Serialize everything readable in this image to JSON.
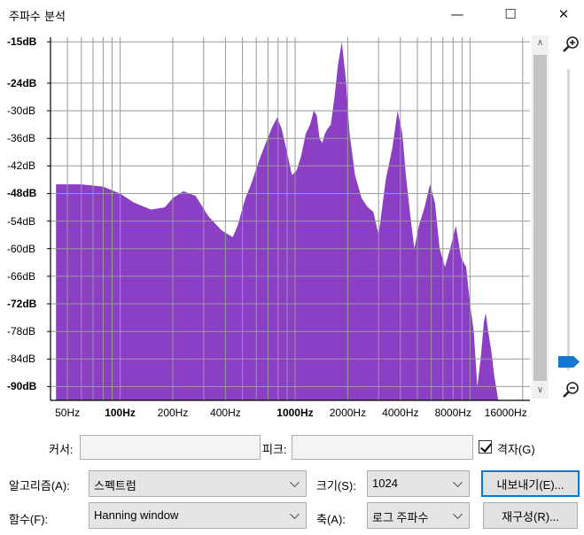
{
  "window": {
    "title": "주파수 분석",
    "minimize_glyph": "—",
    "maximize_glyph": "☐",
    "close_glyph": "✕"
  },
  "chart_data": {
    "type": "area",
    "color": "#8a3fc5",
    "grid": true,
    "xscale": "log",
    "xlim": [
      40,
      22000
    ],
    "ylim": [
      -93,
      -14
    ],
    "y_ticks": [
      {
        "value": -15,
        "label": "-15dB",
        "bold": true
      },
      {
        "value": -24,
        "label": "-24dB",
        "bold": true
      },
      {
        "value": -30,
        "label": "-30dB",
        "bold": false
      },
      {
        "value": -36,
        "label": "-36dB",
        "bold": false
      },
      {
        "value": -42,
        "label": "-42dB",
        "bold": false
      },
      {
        "value": -48,
        "label": "-48dB",
        "bold": true
      },
      {
        "value": -54,
        "label": "-54dB",
        "bold": false
      },
      {
        "value": -60,
        "label": "-60dB",
        "bold": false
      },
      {
        "value": -66,
        "label": "-66dB",
        "bold": false
      },
      {
        "value": -72,
        "label": "-72dB",
        "bold": true
      },
      {
        "value": -78,
        "label": "-78dB",
        "bold": false
      },
      {
        "value": -84,
        "label": "-84dB",
        "bold": false
      },
      {
        "value": -90,
        "label": "-90dB",
        "bold": true
      }
    ],
    "x_ticks": [
      {
        "value": 50,
        "label": "50Hz",
        "bold": false
      },
      {
        "value": 100,
        "label": "100Hz",
        "bold": true
      },
      {
        "value": 200,
        "label": "200Hz",
        "bold": false
      },
      {
        "value": 400,
        "label": "400Hz",
        "bold": false
      },
      {
        "value": 1000,
        "label": "1000Hz",
        "bold": true
      },
      {
        "value": 2000,
        "label": "2000Hz",
        "bold": false
      },
      {
        "value": 4000,
        "label": "4000Hz",
        "bold": false
      },
      {
        "value": 8000,
        "label": "8000Hz",
        "bold": false
      },
      {
        "value": 16000,
        "label": "16000Hz",
        "bold": false
      }
    ],
    "spectrum": {
      "x": [
        43,
        60,
        80,
        100,
        120,
        150,
        180,
        200,
        230,
        270,
        320,
        380,
        440,
        470,
        520,
        560,
        620,
        680,
        740,
        790,
        840,
        900,
        960,
        1020,
        1080,
        1150,
        1220,
        1280,
        1330,
        1380,
        1430,
        1480,
        1530,
        1600,
        1680,
        1760,
        1850,
        1950,
        2050,
        2200,
        2400,
        2600,
        2800,
        3000,
        3300,
        3600,
        3850,
        4100,
        4300,
        4500,
        4800,
        5100,
        5500,
        5900,
        6300,
        6700,
        7200,
        7700,
        8300,
        8900,
        9500,
        10000,
        10500,
        11000,
        11500,
        12000,
        12300,
        12700,
        13200,
        13800,
        14500
      ],
      "y": [
        -46,
        -46,
        -46.5,
        -48,
        -50,
        -51.5,
        -51,
        -49,
        -47.5,
        -48.5,
        -53,
        -56,
        -57.5,
        -55,
        -49,
        -46,
        -41,
        -37,
        -33.5,
        -31.5,
        -34,
        -39,
        -44,
        -43,
        -40,
        -35,
        -33,
        -30,
        -31,
        -36,
        -37,
        -35,
        -34,
        -33,
        -27,
        -20,
        -15,
        -23,
        -35,
        -44,
        -49,
        -51,
        -52,
        -57,
        -45,
        -38,
        -30,
        -35,
        -44,
        -51,
        -60,
        -55,
        -51,
        -46,
        -50,
        -60,
        -64,
        -60,
        -55,
        -62,
        -64,
        -72,
        -78,
        -90,
        -84,
        -76,
        -74,
        -78,
        -82,
        -88,
        -93
      ]
    }
  },
  "controls": {
    "cursor_label": "커서:",
    "cursor_value": "",
    "peak_label": "피크:",
    "peak_value": "",
    "grid_label": "격자(G)",
    "algorithm_label": "알고리즘(A):",
    "algorithm_value": "스펙트럼",
    "size_label": "크기(S):",
    "size_value": "1024",
    "export_label": "내보내기(E)...",
    "function_label": "함수(F):",
    "function_value": "Hanning window",
    "axis_label": "축(A):",
    "axis_value": "로그 주파수",
    "replot_label": "재구성(R)...",
    "scroll_up_glyph": "∧",
    "scroll_down_glyph": "∨"
  }
}
